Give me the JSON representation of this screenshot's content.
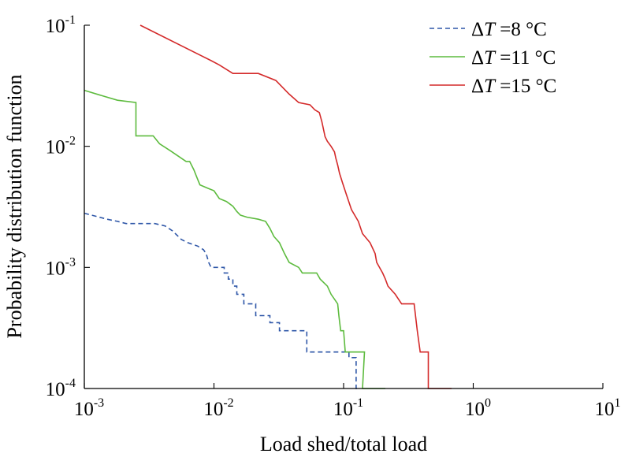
{
  "chart_data": {
    "type": "line",
    "title": "",
    "xlabel": "Load shed/total load",
    "ylabel": "Probability distribution function",
    "xscale": "log",
    "yscale": "log",
    "xlim": [
      0.001,
      10
    ],
    "ylim": [
      0.0001,
      0.1
    ],
    "x_ticks": [
      {
        "value": 0.001,
        "base": "10",
        "exp": "-3"
      },
      {
        "value": 0.01,
        "base": "10",
        "exp": "-2"
      },
      {
        "value": 0.1,
        "base": "10",
        "exp": "-1"
      },
      {
        "value": 1,
        "base": "10",
        "exp": "0"
      },
      {
        "value": 10,
        "base": "10",
        "exp": "1"
      }
    ],
    "y_ticks": [
      {
        "value": 0.1,
        "base": "10",
        "exp": "-1"
      },
      {
        "value": 0.01,
        "base": "10",
        "exp": "-2"
      },
      {
        "value": 0.001,
        "base": "10",
        "exp": "-3"
      },
      {
        "value": 0.0001,
        "base": "10",
        "exp": "-4"
      }
    ],
    "grid": false,
    "legend_position": "top-right",
    "series": [
      {
        "name": "ΔT =8 °C",
        "delta": "Δ",
        "var": "T",
        "rest": " =8 °C",
        "color": "#2f57a8",
        "style": "dashed",
        "points": [
          [
            0.001,
            0.0028
          ],
          [
            0.0015,
            0.0025
          ],
          [
            0.0018,
            0.0024
          ],
          [
            0.0021,
            0.0023
          ],
          [
            0.0025,
            0.0023
          ],
          [
            0.0035,
            0.0023
          ],
          [
            0.0042,
            0.0022
          ],
          [
            0.0048,
            0.002
          ],
          [
            0.0056,
            0.0017
          ],
          [
            0.0063,
            0.0016
          ],
          [
            0.0075,
            0.0015
          ],
          [
            0.0083,
            0.0014
          ],
          [
            0.0087,
            0.0013
          ],
          [
            0.0091,
            0.0011
          ],
          [
            0.0095,
            0.001
          ],
          [
            0.012,
            0.001
          ],
          [
            0.012,
            0.0009
          ],
          [
            0.0129,
            0.0009
          ],
          [
            0.0129,
            0.0008
          ],
          [
            0.014,
            0.0008
          ],
          [
            0.014,
            0.0007
          ],
          [
            0.015,
            0.0007
          ],
          [
            0.015,
            0.0006
          ],
          [
            0.017,
            0.0006
          ],
          [
            0.017,
            0.0005
          ],
          [
            0.021,
            0.0005
          ],
          [
            0.021,
            0.0004
          ],
          [
            0.027,
            0.0004
          ],
          [
            0.027,
            0.00035
          ],
          [
            0.032,
            0.00035
          ],
          [
            0.032,
            0.0003
          ],
          [
            0.052,
            0.0003
          ],
          [
            0.052,
            0.0002
          ],
          [
            0.11,
            0.0002
          ],
          [
            0.11,
            0.00018
          ],
          [
            0.125,
            0.00018
          ],
          [
            0.125,
            0.0001
          ],
          [
            0.13,
            0.0001
          ]
        ]
      },
      {
        "name": "ΔT =11 °C",
        "delta": "Δ",
        "var": "T",
        "rest": " =11 °C",
        "color": "#5dbb3e",
        "style": "solid",
        "points": [
          [
            0.001,
            0.029
          ],
          [
            0.0014,
            0.026
          ],
          [
            0.0018,
            0.024
          ],
          [
            0.0025,
            0.023
          ],
          [
            0.0025,
            0.0122
          ],
          [
            0.0034,
            0.0122
          ],
          [
            0.0038,
            0.0105
          ],
          [
            0.0046,
            0.0092
          ],
          [
            0.0061,
            0.0075
          ],
          [
            0.0065,
            0.0075
          ],
          [
            0.007,
            0.0064
          ],
          [
            0.0074,
            0.0055
          ],
          [
            0.0078,
            0.0048
          ],
          [
            0.009,
            0.0045
          ],
          [
            0.01,
            0.0043
          ],
          [
            0.011,
            0.0037
          ],
          [
            0.0125,
            0.0035
          ],
          [
            0.014,
            0.0032
          ],
          [
            0.015,
            0.0029
          ],
          [
            0.016,
            0.0027
          ],
          [
            0.018,
            0.0026
          ],
          [
            0.022,
            0.0025
          ],
          [
            0.025,
            0.0024
          ],
          [
            0.027,
            0.0021
          ],
          [
            0.029,
            0.0018
          ],
          [
            0.032,
            0.0016
          ],
          [
            0.035,
            0.0013
          ],
          [
            0.038,
            0.0011
          ],
          [
            0.045,
            0.001
          ],
          [
            0.048,
            0.0009
          ],
          [
            0.062,
            0.0009
          ],
          [
            0.066,
            0.0008
          ],
          [
            0.075,
            0.0007
          ],
          [
            0.08,
            0.0006
          ],
          [
            0.09,
            0.0005
          ],
          [
            0.092,
            0.0004
          ],
          [
            0.095,
            0.0003
          ],
          [
            0.1,
            0.0003
          ],
          [
            0.103,
            0.0002
          ],
          [
            0.145,
            0.0002
          ],
          [
            0.14,
            0.0001
          ],
          [
            0.21,
            0.0001
          ]
        ]
      },
      {
        "name": "ΔT =15 °C",
        "delta": "Δ",
        "var": "T",
        "rest": " =15 °C",
        "color": "#d42a2a",
        "style": "solid",
        "points": [
          [
            0.0027,
            0.1
          ],
          [
            0.0095,
            0.051
          ],
          [
            0.011,
            0.047
          ],
          [
            0.014,
            0.04
          ],
          [
            0.018,
            0.04
          ],
          [
            0.022,
            0.04
          ],
          [
            0.03,
            0.035
          ],
          [
            0.038,
            0.027
          ],
          [
            0.045,
            0.023
          ],
          [
            0.055,
            0.022
          ],
          [
            0.06,
            0.02
          ],
          [
            0.065,
            0.019
          ],
          [
            0.068,
            0.016
          ],
          [
            0.072,
            0.012
          ],
          [
            0.075,
            0.011
          ],
          [
            0.08,
            0.01
          ],
          [
            0.085,
            0.009
          ],
          [
            0.087,
            0.008
          ],
          [
            0.09,
            0.007
          ],
          [
            0.093,
            0.006
          ],
          [
            0.098,
            0.005
          ],
          [
            0.105,
            0.004
          ],
          [
            0.115,
            0.003
          ],
          [
            0.13,
            0.0024
          ],
          [
            0.14,
            0.0019
          ],
          [
            0.16,
            0.0016
          ],
          [
            0.175,
            0.0013
          ],
          [
            0.18,
            0.0011
          ],
          [
            0.2,
            0.0009
          ],
          [
            0.21,
            0.0008
          ],
          [
            0.22,
            0.0007
          ],
          [
            0.25,
            0.0006
          ],
          [
            0.28,
            0.0005
          ],
          [
            0.35,
            0.0005
          ],
          [
            0.37,
            0.0003
          ],
          [
            0.39,
            0.0002
          ],
          [
            0.45,
            0.0002
          ],
          [
            0.45,
            0.0001
          ],
          [
            0.68,
            0.0001
          ]
        ]
      }
    ]
  }
}
